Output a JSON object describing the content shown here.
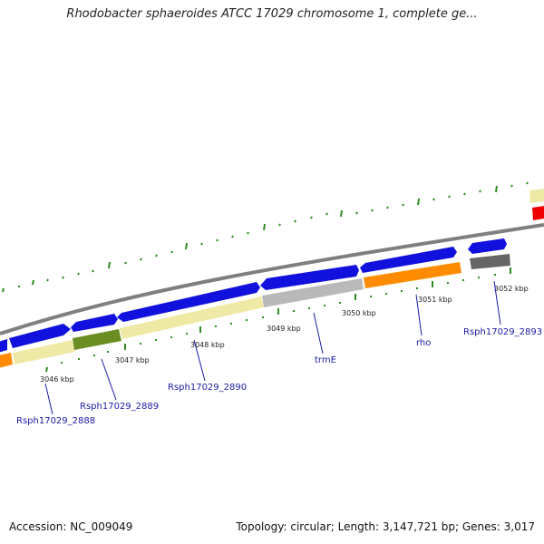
{
  "title": "Rhodobacter sphaeroides ATCC 17029 chromosome 1, complete ge...",
  "accession": "Accession: NC_009049",
  "summary": "Topology: circular; Length: 3,147,721 bp; Genes: 3,017",
  "colors": {
    "backbone": "#8a8a8a",
    "forward_gene": "#1111dd",
    "pale_gene": "#efe9a6",
    "olive_gene": "#6b8e23",
    "gray_gene": "#b9b9b9",
    "orange_gene": "#ff8c00",
    "red_gene": "#ee0000",
    "dark_gray_gene": "#666666",
    "tick": "#2e8b22",
    "label_blue": "#1a1aa6"
  },
  "kbp_labels": [
    "3046 kbp",
    "3047 kbp",
    "3048 kbp",
    "3049 kbp",
    "3050 kbp",
    "3051 kbp",
    "3052 kbp"
  ],
  "gene_labels": [
    "Rsph17029_2888",
    "Rsph17029_2889",
    "Rsph17029_2890",
    "trmE",
    "rho",
    "Rsph17029_2893"
  ]
}
